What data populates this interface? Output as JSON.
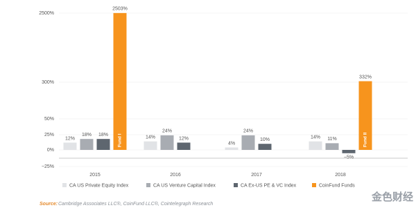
{
  "chart_data": {
    "type": "bar",
    "categories": [
      "2015",
      "2016",
      "2017",
      "2018"
    ],
    "series": [
      {
        "name": "CA US Private Equity Index",
        "color": "#e1e3e6",
        "values": [
          12,
          14,
          4,
          14
        ],
        "value_labels": [
          "12%",
          "14%",
          "4%",
          "14%"
        ]
      },
      {
        "name": "CA US Venture Capital Index",
        "color": "#a8acb2",
        "values": [
          18,
          24,
          24,
          11
        ],
        "value_labels": [
          "18%",
          "24%",
          "24%",
          "11%"
        ]
      },
      {
        "name": "CA Ex-US PE & VC Index",
        "color": "#5e666f",
        "values": [
          18,
          12,
          10,
          -5
        ],
        "value_labels": [
          "18%",
          "12%",
          "10%",
          "−5%"
        ]
      },
      {
        "name": "CoinFund Funds",
        "color": "#f7941d",
        "values": [
          2503,
          null,
          null,
          332
        ],
        "value_labels": [
          "2503%",
          null,
          null,
          "332%"
        ],
        "bar_labels": [
          "Fund I",
          null,
          null,
          "Fund II"
        ]
      }
    ],
    "ylim": [
      -25,
      2500
    ],
    "yticks": [
      {
        "value": -25,
        "label": "−25%"
      },
      {
        "value": 0,
        "label": "0%"
      },
      {
        "value": 25,
        "label": "25%"
      },
      {
        "value": 50,
        "label": "50%"
      },
      {
        "value": 300,
        "label": "300%"
      },
      {
        "value": 2500,
        "label": "2500%"
      }
    ],
    "grid": true,
    "source_label": "Source:",
    "source": "Cambridge Associates LLC®, CoinFund LLC®, Cointelegraph Research",
    "watermark": "金色财经"
  }
}
